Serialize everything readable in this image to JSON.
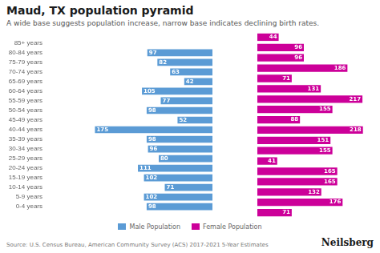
{
  "chart_data": {
    "type": "bar",
    "orientation": "horizontal",
    "title": "Maud, TX population pyramid",
    "subtitle": "A wide base suggests population increase, narrow base indicates declining birth rates.",
    "source": "Source: U.S. Census Bureau, American Community Survey (ACS) 2017-2021 5-Year Estimates",
    "annotations": [
      "Neilsberg"
    ],
    "categories": [
      "0-4 years",
      "5-9 years",
      "10-14 years",
      "15-19 years",
      "20-24 years",
      "25-29 years",
      "30-34 years",
      "35-39 years",
      "40-44 years",
      "45-49 years",
      "50-54 years",
      "55-59 years",
      "60-64 years",
      "65-69 years",
      "70-74 years",
      "75-79 years",
      "80-84 years",
      "85+ years"
    ],
    "series": [
      {
        "name": "Male Population",
        "color": "#5b9bd5",
        "values": [
          98,
          102,
          71,
          102,
          111,
          80,
          96,
          98,
          175,
          52,
          98,
          77,
          105,
          42,
          63,
          82,
          97,
          0
        ]
      },
      {
        "name": "Female Population",
        "color": "#cc0099",
        "values": [
          71,
          176,
          132,
          165,
          165,
          41,
          155,
          151,
          218,
          88,
          155,
          217,
          131,
          71,
          186,
          96,
          96,
          44
        ]
      }
    ],
    "xlim": [
      0,
      240
    ],
    "grid": false,
    "tick_labels": "y",
    "data_labels": true,
    "legend": "bottom"
  }
}
